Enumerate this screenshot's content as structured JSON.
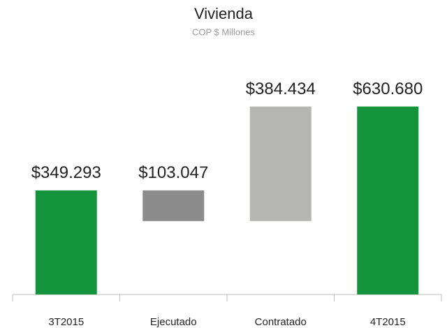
{
  "chart_data": {
    "type": "waterfall",
    "title": "Vivienda",
    "subtitle": "COP $ Millones",
    "categories": [
      "3T2015",
      "Ejecutado",
      "Contratado",
      "4T2015"
    ],
    "values": [
      349293,
      103047,
      384434,
      630680
    ],
    "value_labels": [
      "$349.293",
      "$103.047",
      "$384.434",
      "$630.680"
    ],
    "measures": [
      "absolute",
      "decrease",
      "increase",
      "total"
    ],
    "colors": [
      "#14943c",
      "#8c8c8c",
      "#b5b5b4",
      "#14943c"
    ],
    "ylim": [
      0,
      700000
    ]
  }
}
